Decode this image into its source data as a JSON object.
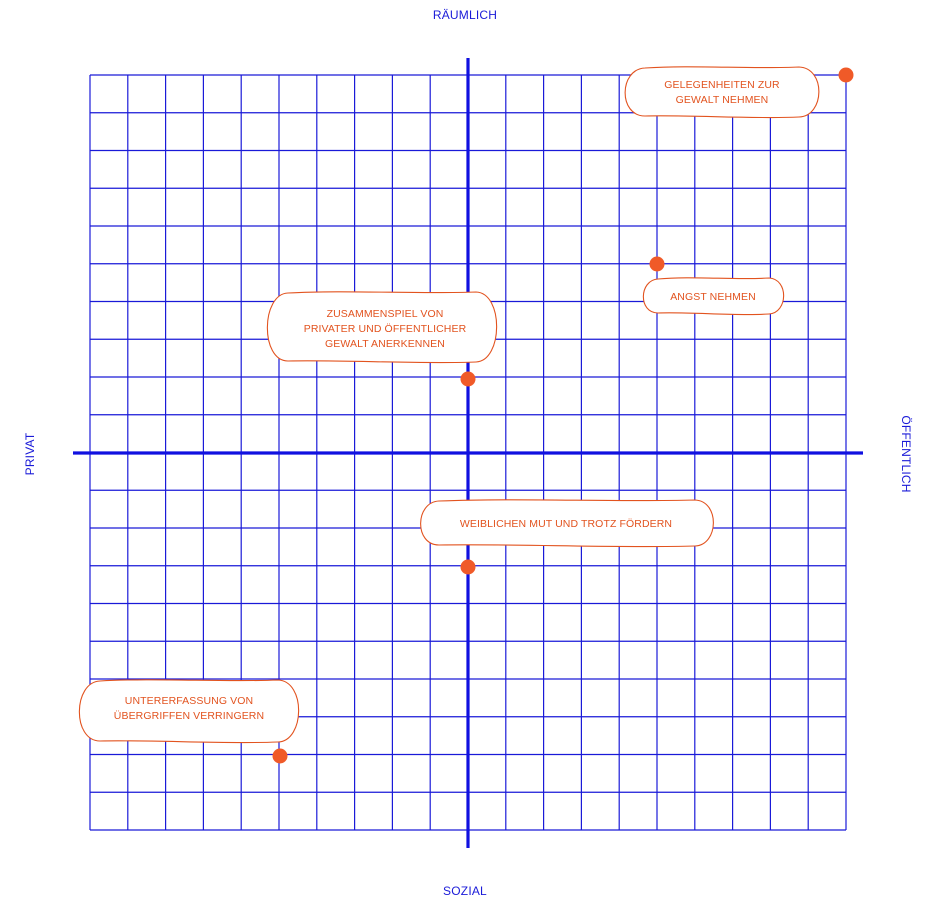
{
  "axes": {
    "top": "RÄUMLICH",
    "bottom": "SOZIAL",
    "left": "PRIVAT",
    "right": "ÖFFENTLICH"
  },
  "grid": {
    "columns": 20,
    "rows": 20
  },
  "colors": {
    "grid": "#1a1ad8",
    "axis": "#1010e0",
    "point": "#f05a28",
    "bubble_stroke": "#e2531f",
    "bubble_text": "#e2531f"
  },
  "items": [
    {
      "id": "gelegenheiten",
      "lines": [
        "GELEGENHEITEN ZUR",
        "GEWALT NEHMEN"
      ]
    },
    {
      "id": "angst",
      "lines": [
        "ANGST NEHMEN"
      ]
    },
    {
      "id": "zusammenspiel",
      "lines": [
        "ZUSAMMENSPIEL VON",
        "PRIVATER UND ÖFFENTLICHER",
        "GEWALT ANERKENNEN"
      ]
    },
    {
      "id": "weiblichen",
      "lines": [
        "WEIBLICHEN MUT UND TROTZ FÖRDERN"
      ]
    },
    {
      "id": "untererfassung",
      "lines": [
        "UNTERERFASSUNG VON",
        "ÜBERGRIFFEN VERRINGERN"
      ]
    }
  ]
}
